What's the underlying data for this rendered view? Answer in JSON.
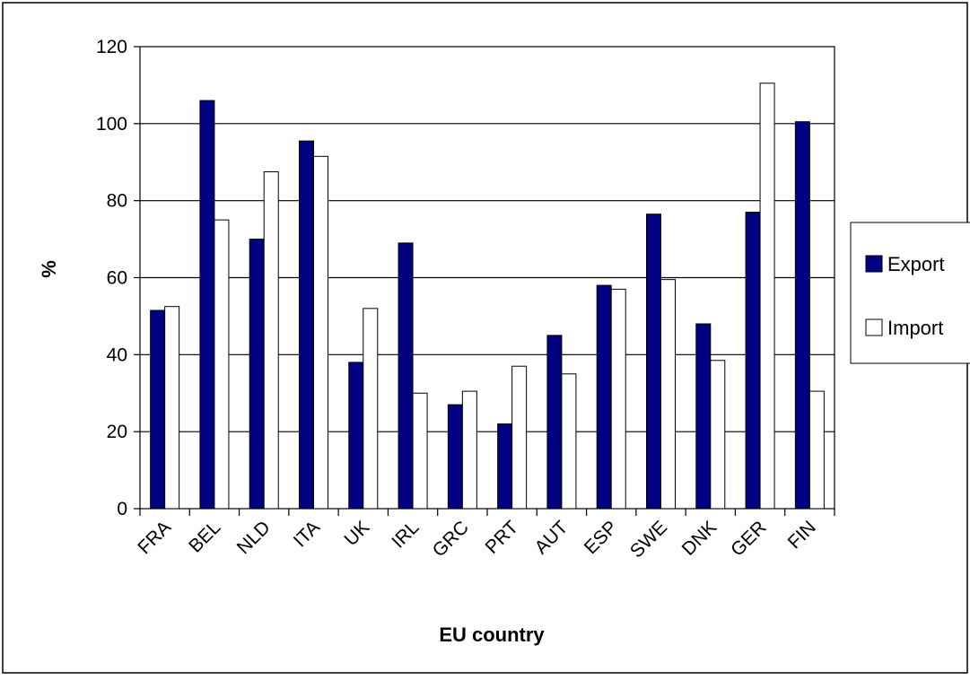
{
  "chart_data": {
    "type": "bar",
    "title": "",
    "xlabel": "EU country",
    "ylabel": "%",
    "ylim": [
      0,
      120
    ],
    "yticks": [
      0,
      20,
      40,
      60,
      80,
      100,
      120
    ],
    "grid": true,
    "legend_position": "right",
    "categories": [
      "FRA",
      "BEL",
      "NLD",
      "ITA",
      "UK",
      "IRL",
      "GRC",
      "PRT",
      "AUT",
      "ESP",
      "SWE",
      "DNK",
      "GER",
      "FIN"
    ],
    "series": [
      {
        "name": "Export",
        "color": "#000080",
        "values": [
          51.5,
          106,
          70,
          95.5,
          38,
          69,
          27,
          22,
          45,
          58,
          76.5,
          48,
          77,
          100.5
        ]
      },
      {
        "name": "Import",
        "color": "#ffffff",
        "values": [
          52.5,
          75,
          87.5,
          91.5,
          52,
          30,
          30.5,
          37,
          35,
          57,
          59.5,
          38.5,
          110.5,
          30.5
        ]
      }
    ]
  }
}
